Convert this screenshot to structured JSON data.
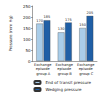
{
  "chart_data": {
    "type": "bar",
    "y_label": "Pressure (mm Hg)",
    "categories": [
      "Exchange episode group A",
      "Exchange episode group B",
      "Exchange episode group C"
    ],
    "series": [
      {
        "name": "End of transit pressure",
        "color": "#a9cde9",
        "values": [
          170,
          130,
          150
        ]
      },
      {
        "name": "Wedging pressure",
        "color": "#1f5fa6",
        "values": [
          185,
          175,
          205
        ]
      }
    ],
    "ylim": [
      0,
      250
    ],
    "yticks": [
      0,
      50,
      100,
      150,
      200,
      250
    ],
    "grid": false,
    "legend": "bottom-right",
    "data_labels": true
  }
}
